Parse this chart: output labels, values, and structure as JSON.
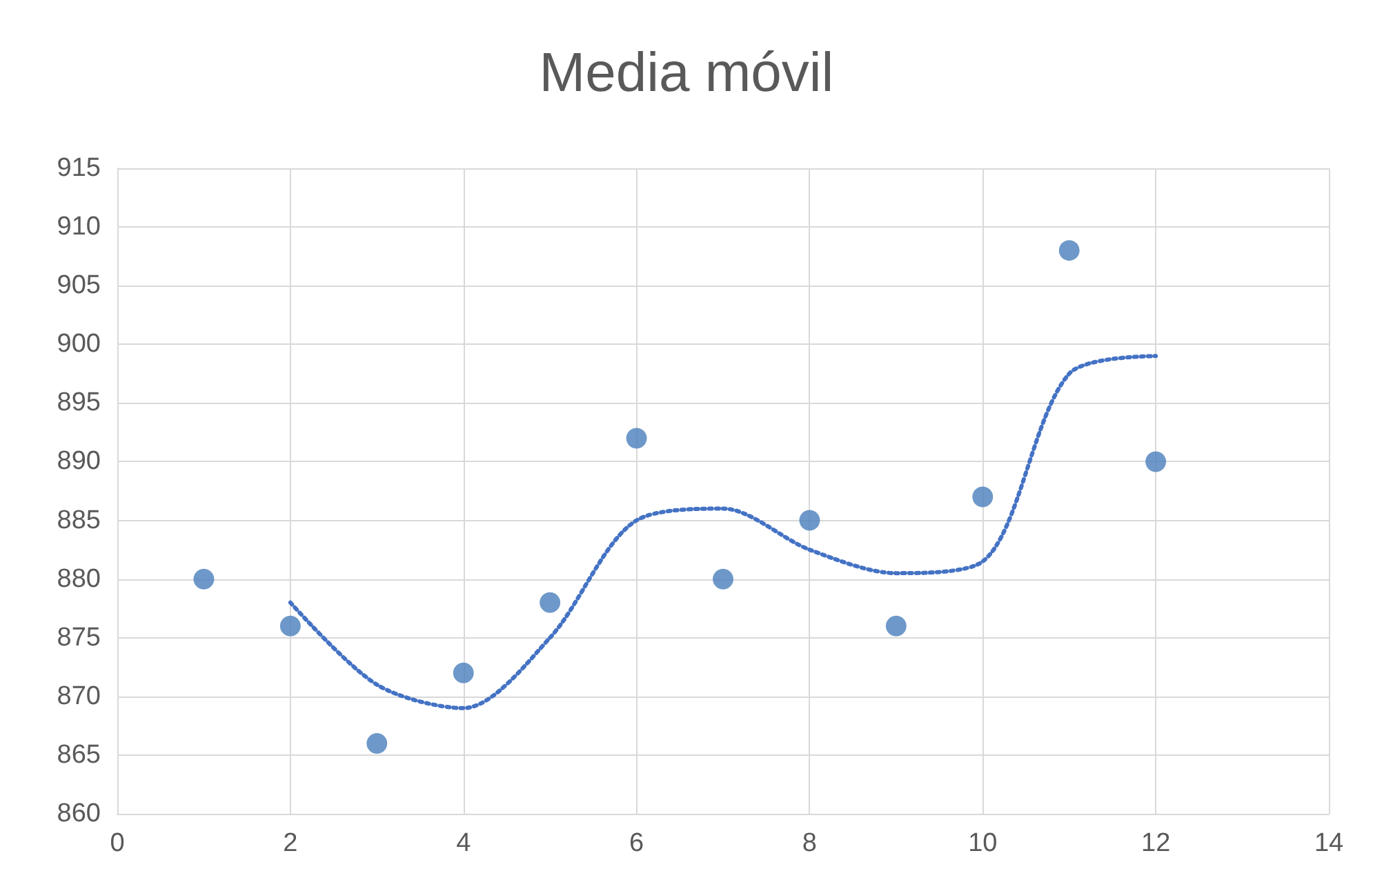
{
  "chart_data": {
    "type": "scatter",
    "title": "Media móvil",
    "xlim": [
      0,
      14
    ],
    "xticks": [
      0,
      2,
      4,
      6,
      8,
      10,
      12,
      14
    ],
    "ylim": [
      860,
      915
    ],
    "yticks": [
      860,
      865,
      870,
      875,
      880,
      885,
      890,
      895,
      900,
      905,
      910,
      915
    ],
    "grid": true,
    "series": [
      {
        "color": "#4a7ebb",
        "marker": "circle",
        "x": [
          1,
          2,
          3,
          4,
          5,
          6,
          7,
          8,
          9,
          10,
          11,
          12
        ],
        "values": [
          880,
          876,
          866,
          872,
          878,
          892,
          880,
          885,
          876,
          887,
          908,
          890
        ]
      },
      {
        "type": "line",
        "color": "#4472c4",
        "marker": "none",
        "line_style": "dotted",
        "x": [
          2,
          3,
          4,
          5,
          6,
          7,
          8,
          9,
          10,
          11,
          12
        ],
        "values": [
          878,
          871,
          869,
          875,
          885,
          886,
          882.5,
          880.5,
          881.5,
          897.5,
          899
        ]
      }
    ]
  }
}
